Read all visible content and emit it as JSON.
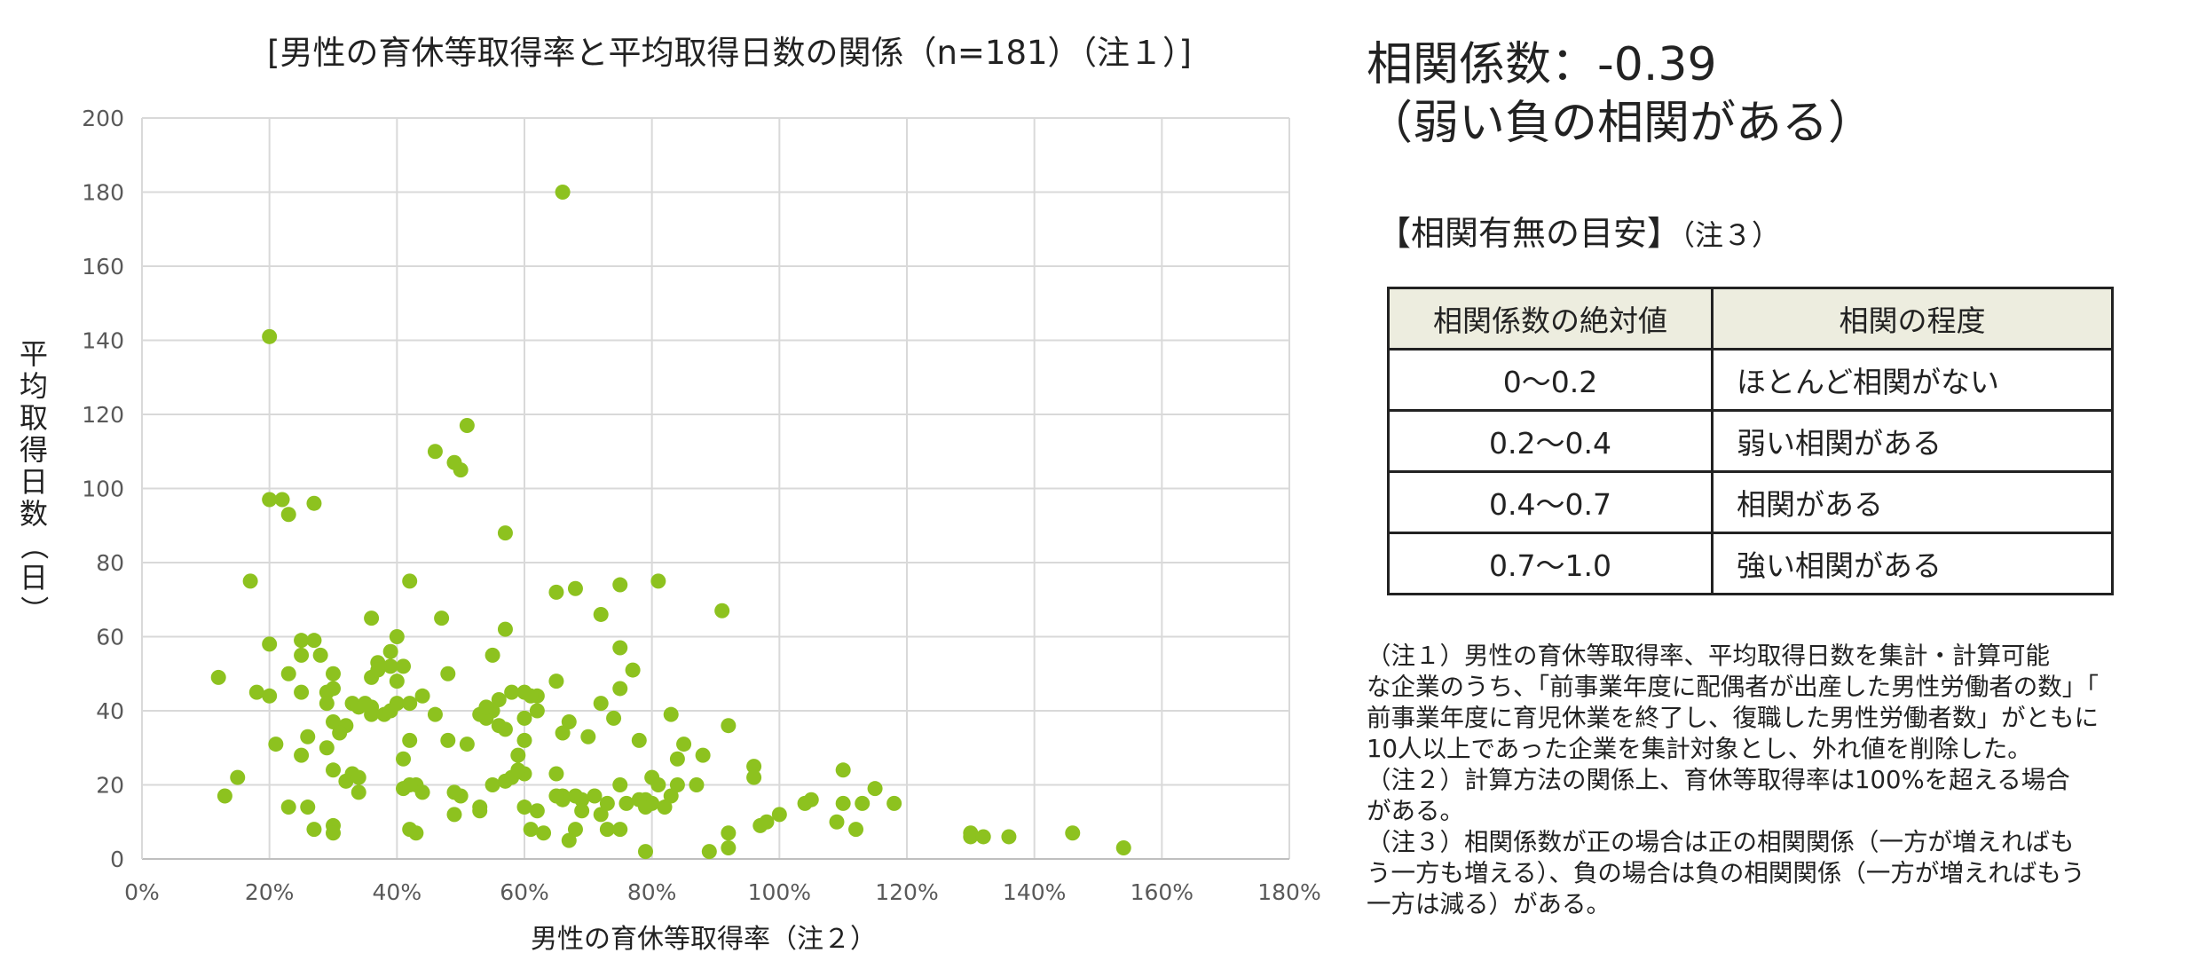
{
  "chart_data": {
    "type": "scatter",
    "title": "[男性の育休等取得率と平均取得日数の関係（n=181）（注１）]",
    "xlabel": "男性の育休等取得率（注２）",
    "ylabel": "平均取得日数（日）",
    "xlim": [
      0,
      1.8
    ],
    "ylim": [
      0,
      200
    ],
    "x_ticks": [
      0,
      0.2,
      0.4,
      0.6,
      0.8,
      1.0,
      1.2,
      1.4,
      1.6,
      1.8
    ],
    "x_tick_labels": [
      "0%",
      "20%",
      "40%",
      "60%",
      "80%",
      "100%",
      "120%",
      "140%",
      "160%",
      "180%"
    ],
    "y_ticks": [
      0,
      20,
      40,
      60,
      80,
      100,
      120,
      140,
      160,
      180,
      200
    ],
    "y_tick_labels": [
      "0",
      "20",
      "40",
      "60",
      "80",
      "100",
      "120",
      "140",
      "160",
      "180",
      "200"
    ],
    "grid": true,
    "marker_color": "#8dc21f",
    "points": [
      [
        0.66,
        180
      ],
      [
        0.2,
        141
      ],
      [
        0.51,
        117
      ],
      [
        0.46,
        110
      ],
      [
        0.49,
        107
      ],
      [
        0.5,
        105
      ],
      [
        0.2,
        97
      ],
      [
        0.22,
        97
      ],
      [
        0.27,
        96
      ],
      [
        0.23,
        93
      ],
      [
        0.57,
        88
      ],
      [
        0.17,
        75
      ],
      [
        0.42,
        75
      ],
      [
        0.75,
        74
      ],
      [
        0.81,
        75
      ],
      [
        0.65,
        72
      ],
      [
        0.68,
        73
      ],
      [
        0.91,
        67
      ],
      [
        0.72,
        66
      ],
      [
        0.36,
        65
      ],
      [
        0.47,
        65
      ],
      [
        0.57,
        62
      ],
      [
        0.4,
        60
      ],
      [
        0.25,
        59
      ],
      [
        0.27,
        59
      ],
      [
        0.2,
        58
      ],
      [
        0.39,
        56
      ],
      [
        0.55,
        55
      ],
      [
        0.75,
        57
      ],
      [
        0.25,
        55
      ],
      [
        0.28,
        55
      ],
      [
        0.37,
        53
      ],
      [
        0.39,
        52
      ],
      [
        0.41,
        52
      ],
      [
        0.77,
        51
      ],
      [
        0.12,
        49
      ],
      [
        0.23,
        50
      ],
      [
        0.3,
        50
      ],
      [
        0.48,
        50
      ],
      [
        0.36,
        49
      ],
      [
        0.4,
        48
      ],
      [
        0.65,
        48
      ],
      [
        0.75,
        46
      ],
      [
        0.18,
        45
      ],
      [
        0.2,
        44
      ],
      [
        0.25,
        45
      ],
      [
        0.29,
        45
      ],
      [
        0.3,
        46
      ],
      [
        0.6,
        45
      ],
      [
        0.58,
        45
      ],
      [
        0.62,
        44
      ],
      [
        0.56,
        43
      ],
      [
        0.33,
        42
      ],
      [
        0.34,
        41
      ],
      [
        0.36,
        41
      ],
      [
        0.4,
        42
      ],
      [
        0.42,
        42
      ],
      [
        0.72,
        42
      ],
      [
        0.55,
        40
      ],
      [
        0.36,
        39
      ],
      [
        0.38,
        39
      ],
      [
        0.46,
        39
      ],
      [
        0.53,
        39
      ],
      [
        0.54,
        38
      ],
      [
        0.74,
        38
      ],
      [
        0.83,
        39
      ],
      [
        0.6,
        38
      ],
      [
        0.3,
        37
      ],
      [
        0.32,
        36
      ],
      [
        0.56,
        36
      ],
      [
        0.67,
        37
      ],
      [
        0.92,
        36
      ],
      [
        0.57,
        35
      ],
      [
        0.31,
        34
      ],
      [
        0.66,
        34
      ],
      [
        0.42,
        32
      ],
      [
        0.48,
        32
      ],
      [
        0.51,
        31
      ],
      [
        0.6,
        32
      ],
      [
        0.26,
        33
      ],
      [
        0.21,
        31
      ],
      [
        0.29,
        30
      ],
      [
        0.7,
        33
      ],
      [
        0.78,
        32
      ],
      [
        0.85,
        31
      ],
      [
        0.25,
        28
      ],
      [
        0.59,
        28
      ],
      [
        0.88,
        28
      ],
      [
        0.41,
        27
      ],
      [
        0.84,
        27
      ],
      [
        0.96,
        25
      ],
      [
        0.3,
        24
      ],
      [
        0.33,
        23
      ],
      [
        0.6,
        23
      ],
      [
        0.65,
        23
      ],
      [
        0.75,
        20
      ],
      [
        0.8,
        22
      ],
      [
        0.96,
        22
      ],
      [
        1.1,
        24
      ],
      [
        0.32,
        21
      ],
      [
        0.34,
        22
      ],
      [
        0.43,
        20
      ],
      [
        0.55,
        20
      ],
      [
        0.57,
        21
      ],
      [
        0.58,
        22
      ],
      [
        0.87,
        20
      ],
      [
        0.15,
        22
      ],
      [
        0.41,
        19
      ],
      [
        0.42,
        20
      ],
      [
        0.44,
        18
      ],
      [
        0.49,
        18
      ],
      [
        0.5,
        17
      ],
      [
        0.66,
        17
      ],
      [
        0.68,
        17
      ],
      [
        0.76,
        15
      ],
      [
        0.79,
        16
      ],
      [
        0.8,
        15
      ],
      [
        0.83,
        17
      ],
      [
        1.05,
        16
      ],
      [
        1.13,
        15
      ],
      [
        1.15,
        19
      ],
      [
        1.18,
        15
      ],
      [
        0.13,
        17
      ],
      [
        0.34,
        18
      ],
      [
        0.66,
        16
      ],
      [
        0.69,
        16
      ],
      [
        0.71,
        17
      ],
      [
        0.73,
        15
      ],
      [
        0.79,
        14
      ],
      [
        0.82,
        14
      ],
      [
        0.84,
        20
      ],
      [
        1.04,
        15
      ],
      [
        1.1,
        15
      ],
      [
        0.23,
        14
      ],
      [
        0.26,
        14
      ],
      [
        0.53,
        13
      ],
      [
        0.6,
        14
      ],
      [
        0.62,
        13
      ],
      [
        0.69,
        13
      ],
      [
        0.72,
        12
      ],
      [
        0.49,
        12
      ],
      [
        0.53,
        14
      ],
      [
        1.0,
        12
      ],
      [
        0.98,
        10
      ],
      [
        1.09,
        10
      ],
      [
        1.12,
        8
      ],
      [
        0.97,
        9
      ],
      [
        0.73,
        8
      ],
      [
        0.75,
        8
      ],
      [
        0.68,
        8
      ],
      [
        0.63,
        7
      ],
      [
        0.43,
        7
      ],
      [
        0.42,
        8
      ],
      [
        0.27,
        8
      ],
      [
        0.3,
        9
      ],
      [
        0.3,
        7
      ],
      [
        0.92,
        7
      ],
      [
        1.3,
        7
      ],
      [
        1.3,
        6
      ],
      [
        1.32,
        6
      ],
      [
        1.36,
        6
      ],
      [
        1.46,
        7
      ],
      [
        0.67,
        5
      ],
      [
        1.54,
        3
      ],
      [
        0.92,
        3
      ],
      [
        0.89,
        2
      ],
      [
        0.79,
        2
      ],
      [
        0.61,
        8
      ],
      [
        0.81,
        20
      ],
      [
        0.44,
        44
      ],
      [
        0.59,
        24
      ],
      [
        0.35,
        42
      ],
      [
        0.39,
        40
      ],
      [
        0.54,
        41
      ],
      [
        0.61,
        44
      ],
      [
        0.37,
        51
      ],
      [
        0.62,
        40
      ],
      [
        0.78,
        16
      ],
      [
        0.65,
        17
      ],
      [
        0.29,
        42
      ]
    ]
  },
  "correlation": {
    "line1": "相関係数：-0.39",
    "line2": "（弱い負の相関がある）"
  },
  "guide": {
    "title": "【相関有無の目安】",
    "title_note": "（注３）",
    "headers": [
      "相関係数の絶対値",
      "相関の程度"
    ],
    "rows": [
      [
        "0～0.2",
        "ほとんど相関がない"
      ],
      [
        "0.2～0.4",
        "弱い相関がある"
      ],
      [
        "0.4～0.7",
        "相関がある"
      ],
      [
        "0.7～1.0",
        "強い相関がある"
      ]
    ]
  },
  "notes": {
    "lines": [
      "（注１）男性の育休等取得率、平均取得日数を集計・計算可能",
      "な企業のうち、「前事業年度に配偶者が出産した男性労働者の数」「",
      "前事業年度に育児休業を終了し、復職した男性労働者数」がともに",
      "10人以上であった企業を集計対象とし、外れ値を削除した。",
      "（注２）計算方法の関係上、育休等取得率は100%を超える場合",
      "がある。",
      "（注３）相関係数が正の場合は正の相関関係（一方が増えればも",
      "う一方も増える）、負の場合は負の相関関係（一方が増えればもう",
      "一方は減る）がある。"
    ]
  }
}
